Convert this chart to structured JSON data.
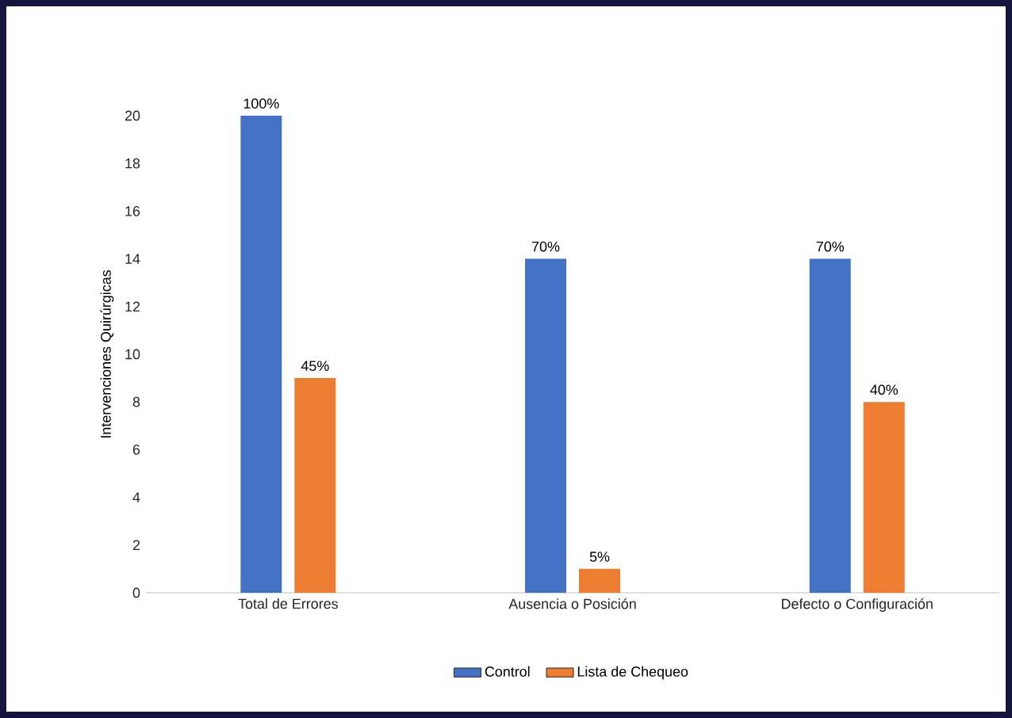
{
  "chart_data": {
    "type": "bar",
    "ylabel": "Intervenciones Quirúrgicas",
    "categories": [
      "Total de Errores",
      "Ausencia o Posición",
      "Defecto o Configuración"
    ],
    "series": [
      {
        "name": "Control",
        "color": "#4472c4",
        "values": [
          20,
          14,
          14
        ]
      },
      {
        "name": "Lista de Chequeo",
        "color": "#ed7d31",
        "values": [
          9,
          1,
          8
        ]
      }
    ],
    "annotations": [
      {
        "text": "100%",
        "x": "Total de Errores",
        "y": 20
      },
      {
        "text": "45%",
        "x": "Total de Errores",
        "y": 9
      },
      {
        "text": "70%",
        "x": "Ausencia o Posición",
        "y": 14
      },
      {
        "text": "5%",
        "x": "Ausencia o Posición",
        "y": 1
      },
      {
        "text": "70%",
        "x": "Defecto o Configuración",
        "y": 14
      },
      {
        "text": "40%",
        "x": "Defecto o Configuración",
        "y": 8
      }
    ],
    "ylim": [
      0,
      20
    ],
    "yticks": [
      0,
      2,
      4,
      6,
      8,
      10,
      12,
      14,
      16,
      18,
      20
    ],
    "grid": false,
    "legend": "bottom"
  }
}
